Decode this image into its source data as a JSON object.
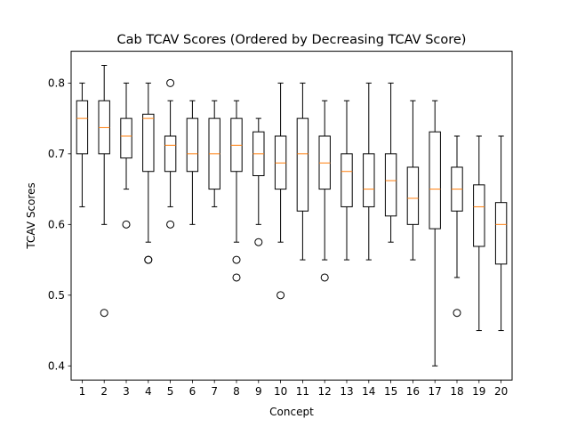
{
  "chart_data": {
    "type": "boxplot",
    "title": "Cab TCAV Scores (Ordered by Decreasing TCAV Score)",
    "xlabel": "Concept",
    "ylabel": "TCAV Scores",
    "ylim": [
      0.38,
      0.845
    ],
    "yticks": [
      "0.4",
      "0.5",
      "0.6",
      "0.7",
      "0.8"
    ],
    "grid": false,
    "colors": {
      "box": "#000000",
      "median": "#ff7f0e",
      "whisker": "#000000",
      "flier": "#000000"
    },
    "categories": [
      "1",
      "2",
      "3",
      "4",
      "5",
      "6",
      "7",
      "8",
      "9",
      "10",
      "11",
      "12",
      "13",
      "14",
      "15",
      "16",
      "17",
      "18",
      "19",
      "20"
    ],
    "boxes": [
      {
        "concept": "1",
        "whislo": 0.625,
        "q1": 0.7,
        "med": 0.75,
        "q3": 0.775,
        "whishi": 0.8,
        "fliers": []
      },
      {
        "concept": "2",
        "whislo": 0.6,
        "q1": 0.7,
        "med": 0.737,
        "q3": 0.775,
        "whishi": 0.825,
        "fliers": [
          0.475
        ]
      },
      {
        "concept": "3",
        "whislo": 0.65,
        "q1": 0.694,
        "med": 0.725,
        "q3": 0.75,
        "whishi": 0.8,
        "fliers": [
          0.6
        ]
      },
      {
        "concept": "4",
        "whislo": 0.575,
        "q1": 0.675,
        "med": 0.75,
        "q3": 0.756,
        "whishi": 0.8,
        "fliers": [
          0.55,
          0.55
        ]
      },
      {
        "concept": "5",
        "whislo": 0.625,
        "q1": 0.675,
        "med": 0.712,
        "q3": 0.725,
        "whishi": 0.775,
        "fliers": [
          0.8,
          0.6
        ]
      },
      {
        "concept": "6",
        "whislo": 0.6,
        "q1": 0.675,
        "med": 0.7,
        "q3": 0.75,
        "whishi": 0.775,
        "fliers": []
      },
      {
        "concept": "7",
        "whislo": 0.625,
        "q1": 0.65,
        "med": 0.7,
        "q3": 0.75,
        "whishi": 0.775,
        "fliers": []
      },
      {
        "concept": "8",
        "whislo": 0.575,
        "q1": 0.675,
        "med": 0.712,
        "q3": 0.75,
        "whishi": 0.775,
        "fliers": [
          0.55,
          0.525
        ]
      },
      {
        "concept": "9",
        "whislo": 0.6,
        "q1": 0.669,
        "med": 0.7,
        "q3": 0.731,
        "whishi": 0.75,
        "fliers": [
          0.575
        ]
      },
      {
        "concept": "10",
        "whislo": 0.575,
        "q1": 0.65,
        "med": 0.687,
        "q3": 0.725,
        "whishi": 0.8,
        "fliers": [
          0.5
        ]
      },
      {
        "concept": "11",
        "whislo": 0.55,
        "q1": 0.619,
        "med": 0.7,
        "q3": 0.75,
        "whishi": 0.8,
        "fliers": []
      },
      {
        "concept": "12",
        "whislo": 0.55,
        "q1": 0.65,
        "med": 0.687,
        "q3": 0.725,
        "whishi": 0.775,
        "fliers": [
          0.525
        ]
      },
      {
        "concept": "13",
        "whislo": 0.55,
        "q1": 0.625,
        "med": 0.675,
        "q3": 0.7,
        "whishi": 0.775,
        "fliers": []
      },
      {
        "concept": "14",
        "whislo": 0.55,
        "q1": 0.625,
        "med": 0.65,
        "q3": 0.7,
        "whishi": 0.8,
        "fliers": []
      },
      {
        "concept": "15",
        "whislo": 0.575,
        "q1": 0.612,
        "med": 0.662,
        "q3": 0.7,
        "whishi": 0.8,
        "fliers": []
      },
      {
        "concept": "16",
        "whislo": 0.55,
        "q1": 0.6,
        "med": 0.637,
        "q3": 0.681,
        "whishi": 0.775,
        "fliers": []
      },
      {
        "concept": "17",
        "whislo": 0.4,
        "q1": 0.594,
        "med": 0.65,
        "q3": 0.731,
        "whishi": 0.775,
        "fliers": []
      },
      {
        "concept": "18",
        "whislo": 0.525,
        "q1": 0.619,
        "med": 0.65,
        "q3": 0.681,
        "whishi": 0.725,
        "fliers": [
          0.475
        ]
      },
      {
        "concept": "19",
        "whislo": 0.45,
        "q1": 0.569,
        "med": 0.625,
        "q3": 0.656,
        "whishi": 0.725,
        "fliers": []
      },
      {
        "concept": "20",
        "whislo": 0.45,
        "q1": 0.544,
        "med": 0.6,
        "q3": 0.631,
        "whishi": 0.725,
        "fliers": []
      }
    ]
  }
}
